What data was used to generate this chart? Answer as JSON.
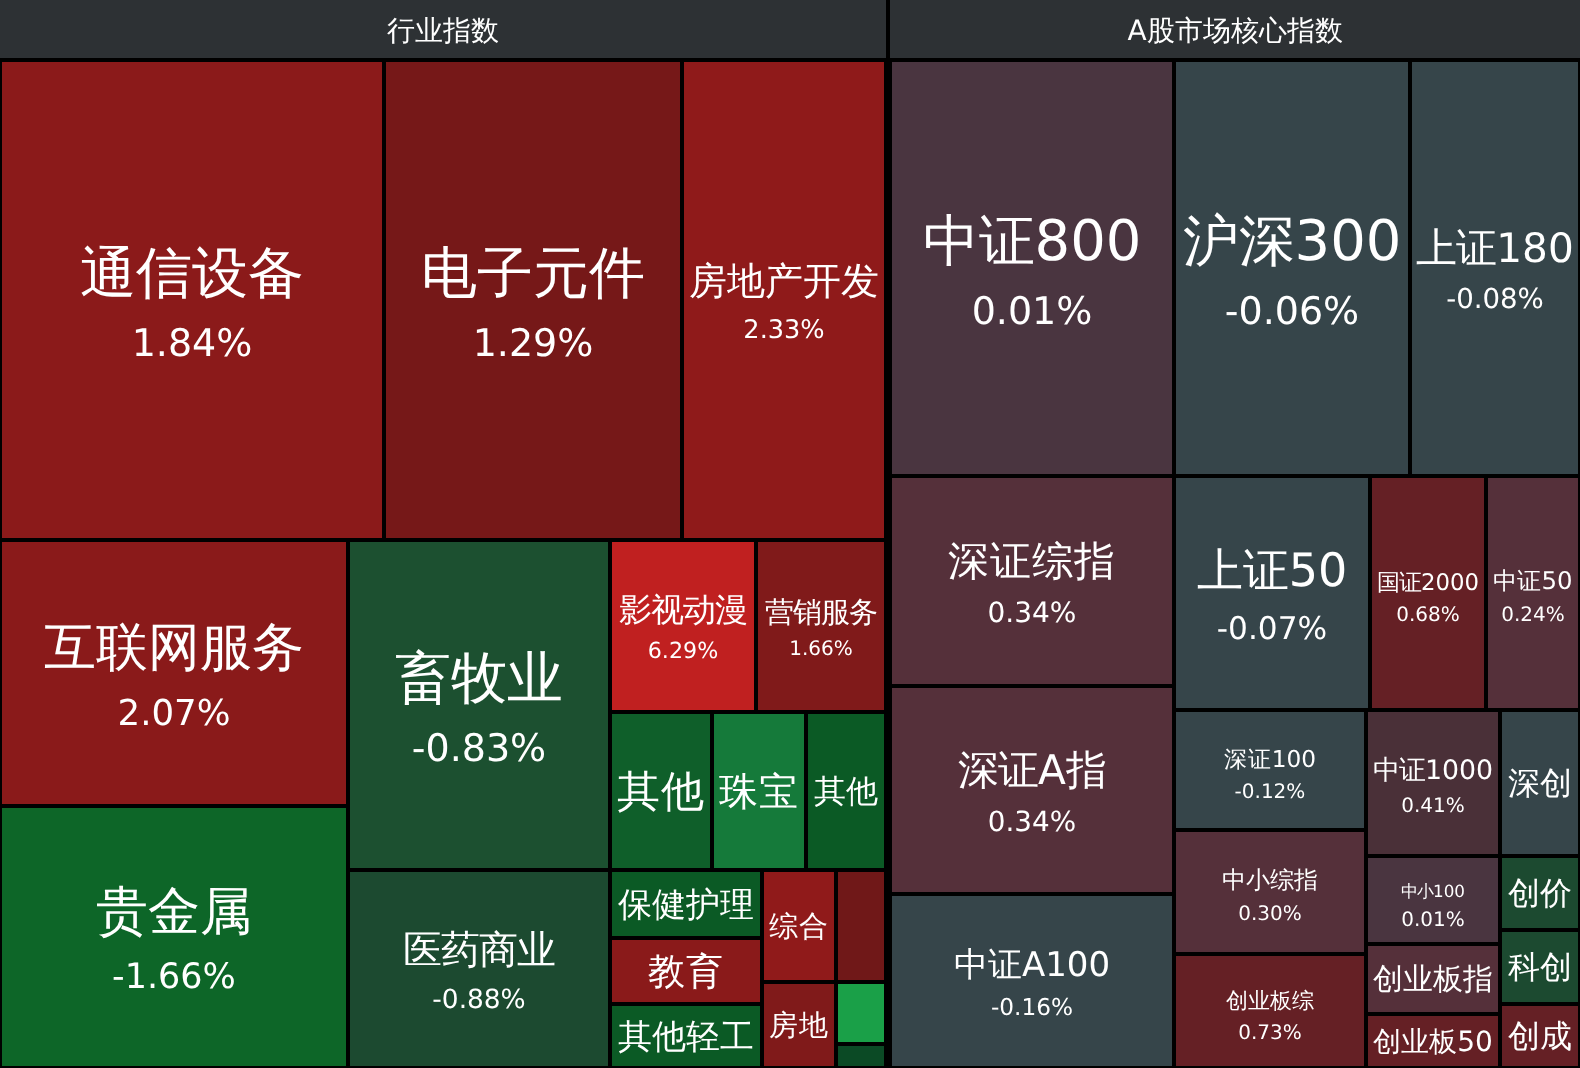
{
  "chart_data": [
    {
      "type": "other",
      "title": "行业指数",
      "values": [
        1.84,
        1.29,
        2.33,
        2.07,
        -1.66,
        -0.83,
        -0.88,
        6.29,
        1.66,
        null,
        null,
        null,
        null,
        null,
        null,
        null,
        null,
        null,
        null,
        null
      ],
      "categories": [
        "通信设备",
        "电子元件",
        "房地产开发",
        "互联网服务",
        "贵金属",
        "畜牧业",
        "医药商业",
        "影视动漫",
        "营销服务",
        "其他",
        "珠宝",
        "其他",
        "保健护理",
        "教育",
        "其他轻工",
        "综合",
        null,
        "房地",
        null,
        null
      ],
      "value_labels": [
        "1.84%",
        "1.29%",
        "2.33%",
        "2.07%",
        "-1.66%",
        "-0.83%",
        "-0.88%",
        "6.29%",
        "1.66%",
        null,
        null,
        null,
        null,
        null,
        null,
        null,
        null,
        null,
        null,
        null
      ],
      "colors": [
        "#8b1a1a",
        "#761818",
        "#8f1a1a",
        "#8a1a1a",
        "#0d6628",
        "#1c5030",
        "#1c4a30",
        "#c02020",
        "#801a1a",
        "#0f5f2a",
        "#157a3a",
        "#0b5a25",
        "#0b5a25",
        "#8a1a1a",
        "#0b5a25",
        "#901a1a",
        "#701818",
        "#801a1a",
        "#1aa048",
        "#0b4a25"
      ]
    },
    {
      "type": "other",
      "title": "A股市场核心指数",
      "values": [
        0.01,
        -0.06,
        -0.08,
        0.34,
        0.34,
        -0.16,
        -0.07,
        0.68,
        0.24,
        -0.12,
        0.3,
        0.73,
        0.41,
        null,
        0.01,
        null,
        null,
        null,
        null,
        null
      ],
      "categories": [
        "中证800",
        "沪深300",
        "上证180",
        "深证综指",
        "深证A指",
        "中证A100",
        "上证50",
        "国证2000",
        "中证50",
        "深证100",
        "中小综指",
        "创业板综",
        "中证1000",
        "深创",
        "中小100",
        "创业板指",
        "创业板50",
        "创价",
        "科创",
        "创成"
      ],
      "value_labels": [
        "0.01%",
        "-0.06%",
        "-0.08%",
        "0.34%",
        "0.34%",
        "-0.16%",
        "-0.07%",
        "0.68%",
        "0.24%",
        "-0.12%",
        "0.30%",
        "0.73%",
        "0.41%",
        null,
        "0.01%",
        null,
        null,
        null,
        null,
        null
      ],
      "colors": [
        "#4a3540",
        "#36454a",
        "#36454a",
        "#55303a",
        "#55303a",
        "#36454a",
        "#36454a",
        "#652025",
        "#55303a",
        "#36454a",
        "#55303a",
        "#652025",
        "#4a3038",
        "#36454a",
        "#4a3540",
        "#55303a",
        "#652025",
        "#1c4a30",
        "#1c4a30",
        "#652025"
      ]
    }
  ]
}
